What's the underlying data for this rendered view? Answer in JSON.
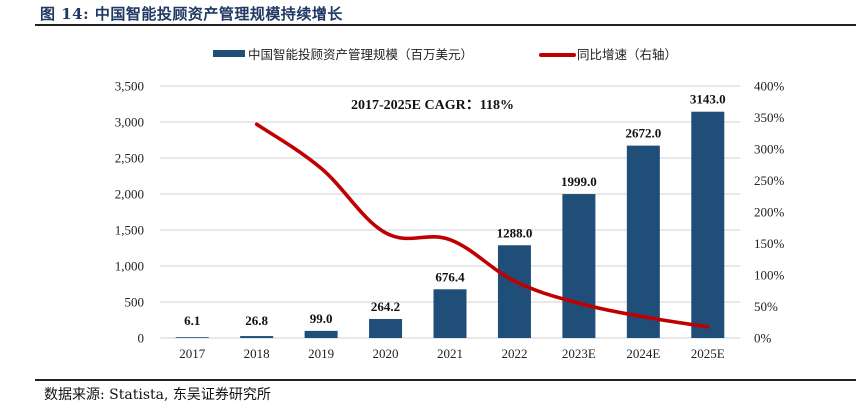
{
  "header": {
    "title": "图 14:  中国智能投顾资产管理规模持续增长"
  },
  "footer": {
    "source": "数据来源: Statista, 东吴证券研究所"
  },
  "colors": {
    "bar": "#1f4e79",
    "line": "#c00000",
    "grid": "#d9d9d9",
    "title": "#1f3864"
  },
  "chart_data": {
    "type": "bar+line",
    "title": "",
    "categories": [
      "2017",
      "2018",
      "2019",
      "2020",
      "2021",
      "2022",
      "2023E",
      "2024E",
      "2025E"
    ],
    "series": [
      {
        "name": "中国智能投顾资产管理规模（百万美元）",
        "type": "bar",
        "axis": "left",
        "values": [
          6.1,
          26.8,
          99.0,
          264.2,
          676.4,
          1288.0,
          1999.0,
          2672.0,
          3143.0
        ],
        "labels": [
          "6.1",
          "26.8",
          "99.0",
          "264.2",
          "676.4",
          "1288.0",
          "1999.0",
          "2672.0",
          "3143.0"
        ]
      },
      {
        "name": "同比增速（右轴）",
        "type": "line",
        "axis": "right",
        "values": [
          null,
          339.3,
          269.4,
          166.9,
          156.0,
          90.4,
          55.2,
          33.7,
          17.6
        ]
      }
    ],
    "left_axis": {
      "ylim": [
        0,
        3500
      ],
      "ticks": [
        0,
        500,
        1000,
        1500,
        2000,
        2500,
        3000,
        3500
      ],
      "tick_labels": [
        "0",
        "500",
        "1,000",
        "1,500",
        "2,000",
        "2,500",
        "3,000",
        "3,500"
      ]
    },
    "right_axis": {
      "ylim": [
        0,
        400
      ],
      "ticks": [
        0,
        50,
        100,
        150,
        200,
        250,
        300,
        350,
        400
      ],
      "tick_labels": [
        "0%",
        "50%",
        "100%",
        "150%",
        "200%",
        "250%",
        "300%",
        "350%",
        "400%"
      ]
    },
    "annotation": "2017-2025E CAGR：118%",
    "grid": true,
    "legend_position": "top-center",
    "xlabel": "",
    "ylabel": ""
  }
}
